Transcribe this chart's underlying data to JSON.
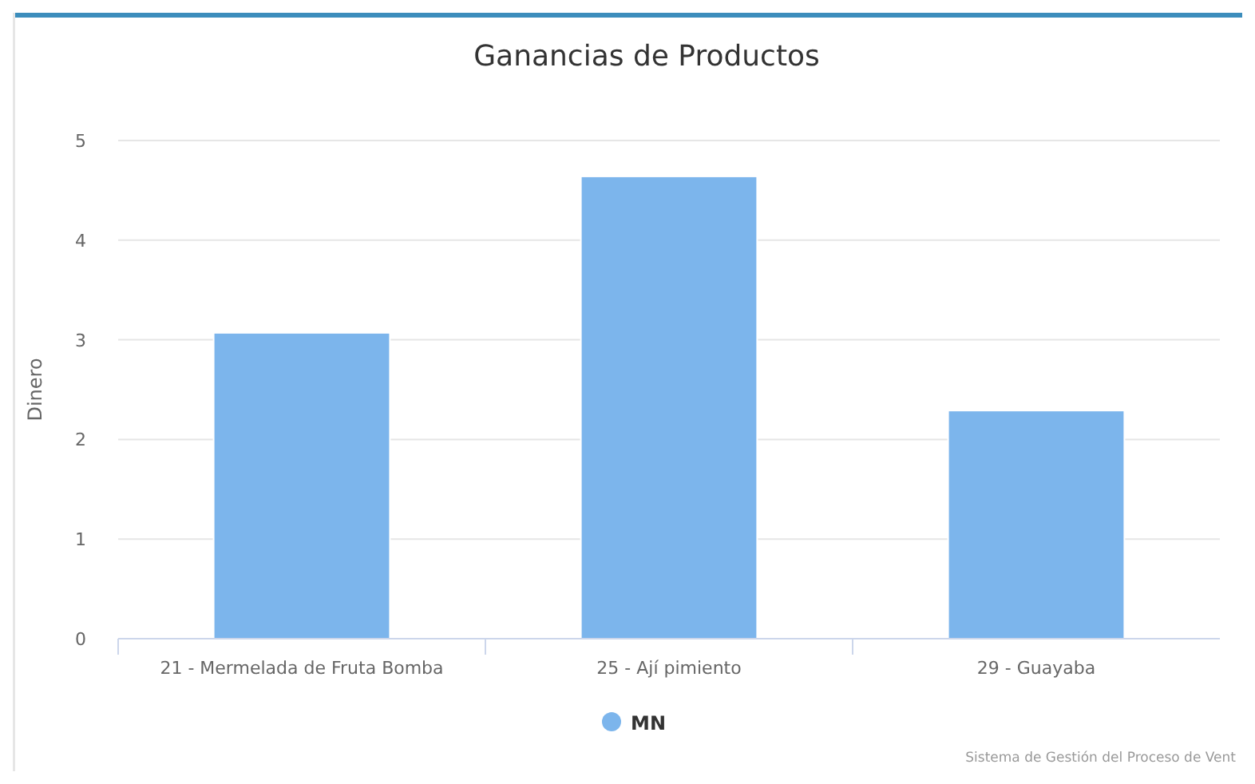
{
  "chart_data": {
    "type": "bar",
    "title": "Ganancias de Productos",
    "ylabel": "Dinero",
    "categories": [
      "21 - Mermelada de Fruta Bomba",
      "25 - Ají pimiento",
      "29 - Guayaba"
    ],
    "series": [
      {
        "name": "MN",
        "color": "#7cb5ec",
        "values": [
          3.07,
          4.64,
          2.29
        ]
      }
    ],
    "ylim": [
      0,
      5
    ],
    "yticks": [
      0,
      1,
      2,
      3,
      4,
      5
    ],
    "grid": "y",
    "legend": "bottom",
    "annotations": [
      "Sistema de Gestión del Proceso de Vent"
    ]
  }
}
